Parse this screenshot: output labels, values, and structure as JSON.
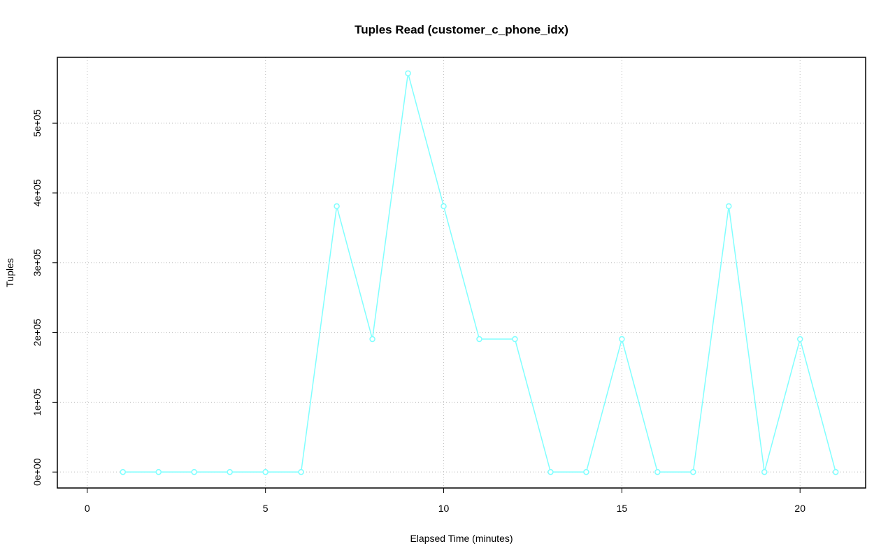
{
  "chart_data": {
    "type": "line",
    "title": "Tuples Read (customer_c_phone_idx)",
    "x_label": "Elapsed Time (minutes)",
    "y_label": "Tuples",
    "x": [
      1,
      2,
      3,
      4,
      5,
      6,
      7,
      8,
      9,
      10,
      11,
      12,
      13,
      14,
      15,
      16,
      17,
      18,
      19,
      20,
      21
    ],
    "values": [
      0,
      0,
      0,
      0,
      0,
      0,
      381000,
      190500,
      571500,
      381000,
      190500,
      190500,
      0,
      0,
      190500,
      0,
      0,
      381000,
      0,
      190500,
      0
    ],
    "color": "#80ffff",
    "xlim": [
      -0.84,
      21.84
    ],
    "xticks": [
      0,
      5,
      10,
      15,
      20
    ],
    "ylim": [
      -22860,
      594360
    ],
    "yticks": [
      {
        "value": 0,
        "label": "0e+00"
      },
      {
        "value": 100000,
        "label": "1e+05"
      },
      {
        "value": 200000,
        "label": "2e+05"
      },
      {
        "value": 300000,
        "label": "3e+05"
      },
      {
        "value": 400000,
        "label": "4e+05"
      },
      {
        "value": 500000,
        "label": "5e+05"
      }
    ],
    "grid": true
  }
}
